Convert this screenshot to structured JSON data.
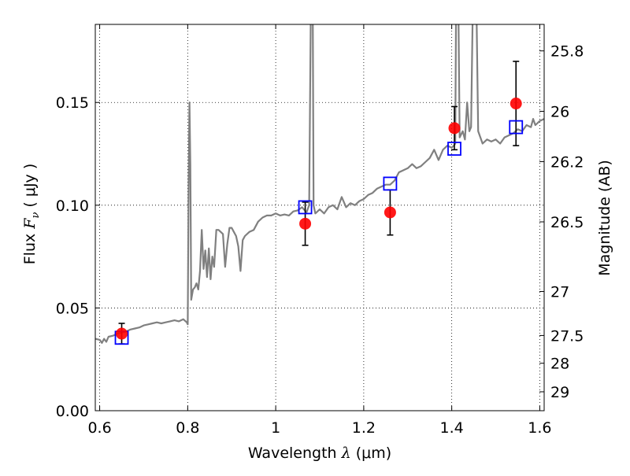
{
  "chart_data": {
    "type": "scatter",
    "title": "",
    "xlabel": {
      "prefix": "Wavelength  ",
      "symbol": "λ",
      "suffix": " (μm)"
    },
    "ylabel": {
      "prefix": "Flux  ",
      "symbol": "F",
      "subscript": "ν",
      "suffix": "  ( μJy )"
    },
    "y2label": "Magnitude (AB)",
    "xlim": [
      0.59,
      1.61
    ],
    "ylim": [
      0.0,
      0.188
    ],
    "grid": true,
    "x_ticks": [
      {
        "value": 0.6,
        "label": "0.6"
      },
      {
        "value": 0.8,
        "label": "0.8"
      },
      {
        "value": 1.0,
        "label": "1"
      },
      {
        "value": 1.2,
        "label": "1.2"
      },
      {
        "value": 1.4,
        "label": "1.4"
      },
      {
        "value": 1.6,
        "label": "1.6"
      }
    ],
    "y_ticks": [
      {
        "value": 0.0,
        "label": "0.00"
      },
      {
        "value": 0.05,
        "label": "0.05"
      },
      {
        "value": 0.1,
        "label": "0.10"
      },
      {
        "value": 0.15,
        "label": "0.15"
      }
    ],
    "y2_ticks": [
      {
        "flux": 0.1751,
        "label": "25.8"
      },
      {
        "flux": 0.1457,
        "label": "26"
      },
      {
        "flux": 0.1212,
        "label": "26.2"
      },
      {
        "flux": 0.0919,
        "label": "26.5"
      },
      {
        "flux": 0.058,
        "label": "27"
      },
      {
        "flux": 0.0366,
        "label": "27.5"
      },
      {
        "flux": 0.0231,
        "label": "28"
      },
      {
        "flux": 0.0092,
        "label": "29"
      }
    ],
    "series": [
      {
        "kind": "line",
        "color": "#808080",
        "points": [
          [
            0.59,
            0.035
          ],
          [
            0.6,
            0.0345
          ],
          [
            0.605,
            0.033
          ],
          [
            0.61,
            0.035
          ],
          [
            0.615,
            0.0335
          ],
          [
            0.62,
            0.036
          ],
          [
            0.63,
            0.0365
          ],
          [
            0.64,
            0.0375
          ],
          [
            0.65,
            0.038
          ],
          [
            0.66,
            0.0385
          ],
          [
            0.67,
            0.0395
          ],
          [
            0.68,
            0.04
          ],
          [
            0.69,
            0.0405
          ],
          [
            0.7,
            0.0415
          ],
          [
            0.71,
            0.042
          ],
          [
            0.72,
            0.0425
          ],
          [
            0.73,
            0.043
          ],
          [
            0.74,
            0.0425
          ],
          [
            0.75,
            0.043
          ],
          [
            0.76,
            0.0435
          ],
          [
            0.77,
            0.044
          ],
          [
            0.78,
            0.0435
          ],
          [
            0.79,
            0.0445
          ],
          [
            0.798,
            0.043
          ],
          [
            0.8,
            0.042
          ],
          [
            0.802,
            0.11
          ],
          [
            0.804,
            0.15
          ],
          [
            0.806,
            0.12
          ],
          [
            0.808,
            0.054
          ],
          [
            0.812,
            0.059
          ],
          [
            0.816,
            0.06
          ],
          [
            0.82,
            0.062
          ],
          [
            0.824,
            0.059
          ],
          [
            0.828,
            0.068
          ],
          [
            0.832,
            0.088
          ],
          [
            0.836,
            0.069
          ],
          [
            0.84,
            0.078
          ],
          [
            0.844,
            0.065
          ],
          [
            0.848,
            0.079
          ],
          [
            0.852,
            0.064
          ],
          [
            0.856,
            0.075
          ],
          [
            0.86,
            0.07
          ],
          [
            0.865,
            0.088
          ],
          [
            0.87,
            0.088
          ],
          [
            0.875,
            0.087
          ],
          [
            0.88,
            0.086
          ],
          [
            0.885,
            0.07
          ],
          [
            0.89,
            0.081
          ],
          [
            0.895,
            0.089
          ],
          [
            0.9,
            0.089
          ],
          [
            0.905,
            0.087
          ],
          [
            0.91,
            0.085
          ],
          [
            0.915,
            0.08
          ],
          [
            0.92,
            0.068
          ],
          [
            0.925,
            0.083
          ],
          [
            0.93,
            0.085
          ],
          [
            0.94,
            0.087
          ],
          [
            0.95,
            0.088
          ],
          [
            0.96,
            0.092
          ],
          [
            0.97,
            0.094
          ],
          [
            0.98,
            0.095
          ],
          [
            0.99,
            0.095
          ],
          [
            1.0,
            0.096
          ],
          [
            1.01,
            0.095
          ],
          [
            1.02,
            0.0955
          ],
          [
            1.03,
            0.095
          ],
          [
            1.04,
            0.097
          ],
          [
            1.05,
            0.0975
          ],
          [
            1.06,
            0.099
          ],
          [
            1.07,
            0.0965
          ],
          [
            1.076,
            0.1
          ],
          [
            1.08,
            0.2
          ],
          [
            1.084,
            0.2
          ],
          [
            1.086,
            0.1
          ],
          [
            1.09,
            0.096
          ],
          [
            1.1,
            0.098
          ],
          [
            1.11,
            0.096
          ],
          [
            1.12,
            0.099
          ],
          [
            1.13,
            0.1
          ],
          [
            1.14,
            0.098
          ],
          [
            1.15,
            0.104
          ],
          [
            1.16,
            0.099
          ],
          [
            1.17,
            0.101
          ],
          [
            1.18,
            0.1
          ],
          [
            1.19,
            0.102
          ],
          [
            1.2,
            0.103
          ],
          [
            1.21,
            0.105
          ],
          [
            1.22,
            0.106
          ],
          [
            1.23,
            0.108
          ],
          [
            1.24,
            0.109
          ],
          [
            1.25,
            0.11
          ],
          [
            1.26,
            0.11
          ],
          [
            1.27,
            0.112
          ],
          [
            1.28,
            0.116
          ],
          [
            1.29,
            0.117
          ],
          [
            1.3,
            0.118
          ],
          [
            1.31,
            0.12
          ],
          [
            1.32,
            0.118
          ],
          [
            1.33,
            0.119
          ],
          [
            1.34,
            0.121
          ],
          [
            1.35,
            0.123
          ],
          [
            1.36,
            0.127
          ],
          [
            1.37,
            0.122
          ],
          [
            1.38,
            0.127
          ],
          [
            1.39,
            0.129
          ],
          [
            1.4,
            0.128
          ],
          [
            1.405,
            0.129
          ],
          [
            1.408,
            0.13
          ],
          [
            1.41,
            0.2
          ],
          [
            1.415,
            0.2
          ],
          [
            1.418,
            0.133
          ],
          [
            1.425,
            0.136
          ],
          [
            1.43,
            0.132
          ],
          [
            1.435,
            0.15
          ],
          [
            1.44,
            0.136
          ],
          [
            1.444,
            0.138
          ],
          [
            1.448,
            0.2
          ],
          [
            1.456,
            0.2
          ],
          [
            1.46,
            0.136
          ],
          [
            1.47,
            0.13
          ],
          [
            1.48,
            0.132
          ],
          [
            1.49,
            0.131
          ],
          [
            1.5,
            0.132
          ],
          [
            1.51,
            0.13
          ],
          [
            1.52,
            0.133
          ],
          [
            1.53,
            0.134
          ],
          [
            1.54,
            0.135
          ],
          [
            1.55,
            0.137
          ],
          [
            1.56,
            0.136
          ],
          [
            1.57,
            0.139
          ],
          [
            1.58,
            0.138
          ],
          [
            1.585,
            0.142
          ],
          [
            1.59,
            0.139
          ],
          [
            1.6,
            0.141
          ],
          [
            1.61,
            0.142
          ]
        ]
      },
      {
        "kind": "errorbar",
        "color": "#ff0000",
        "marker": "circle",
        "points": [
          {
            "x": 0.65,
            "y": 0.0375,
            "err": 0.005
          },
          {
            "x": 1.067,
            "y": 0.091,
            "err": 0.0105
          },
          {
            "x": 1.26,
            "y": 0.0965,
            "err": 0.011
          },
          {
            "x": 1.406,
            "y": 0.1375,
            "err": 0.0105
          },
          {
            "x": 1.546,
            "y": 0.1495,
            "err": 0.0205
          }
        ]
      },
      {
        "kind": "scatter",
        "color": "#0000ff",
        "marker": "square",
        "points": [
          {
            "x": 0.65,
            "y": 0.0355
          },
          {
            "x": 1.067,
            "y": 0.099
          },
          {
            "x": 1.26,
            "y": 0.1105
          },
          {
            "x": 1.406,
            "y": 0.1275
          },
          {
            "x": 1.546,
            "y": 0.138
          }
        ]
      }
    ]
  }
}
